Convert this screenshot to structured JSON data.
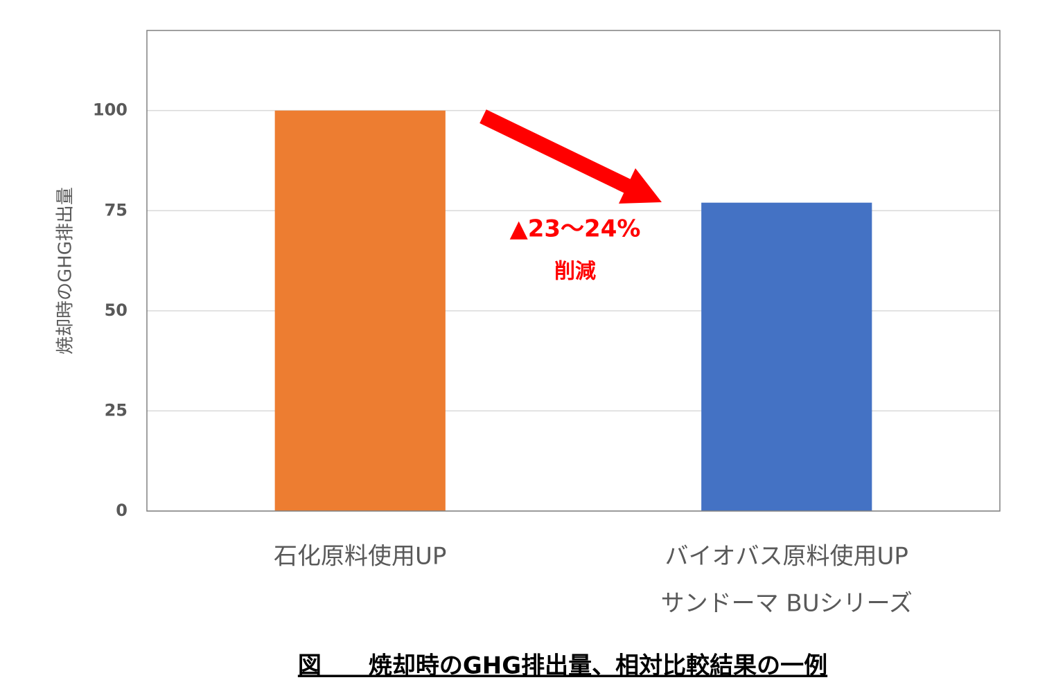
{
  "chart_data": {
    "type": "bar",
    "caption": "図　　焼却時のGHG排出量、相対比較結果の一例",
    "y_axis_label": "焼却時のGHG排出量",
    "categories": [
      [
        "石化原料使用UP"
      ],
      [
        "バイオバス原料使用UP",
        "サンドーマ BUシリーズ"
      ]
    ],
    "values": [
      100,
      77
    ],
    "colors": [
      "#ED7D31",
      "#4472C4"
    ],
    "ylim": [
      0,
      120
    ],
    "yticks": [
      0,
      25,
      50,
      75,
      100
    ],
    "grid": true,
    "annotations": [
      "▲23～24%",
      "削減"
    ]
  }
}
